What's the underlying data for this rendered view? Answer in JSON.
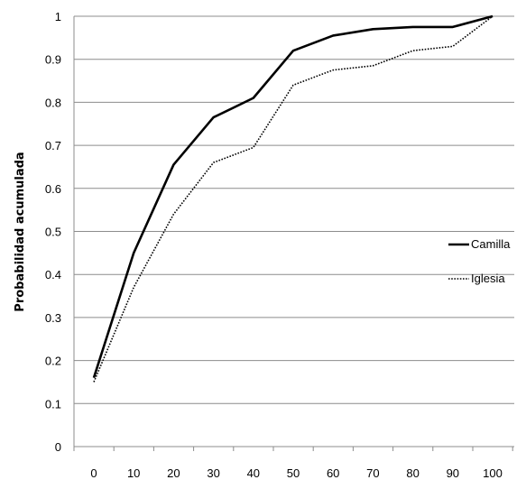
{
  "chart_data": {
    "type": "line",
    "title": "",
    "xlabel": "",
    "ylabel": "Probabilidad  acumulada",
    "x": [
      0,
      10,
      20,
      30,
      40,
      50,
      60,
      70,
      80,
      90,
      100
    ],
    "x_tick_labels": [
      "0",
      "10",
      "20",
      "30",
      "40",
      "50",
      "60",
      "70",
      "80",
      "90",
      "100"
    ],
    "y_tick_labels": [
      "0",
      "0.1",
      "0.2",
      "0.3",
      "0.4",
      "0.5",
      "0.6",
      "0.7",
      "0.8",
      "0.9",
      "1"
    ],
    "ylim": [
      0,
      1
    ],
    "grid": "horizontal",
    "legend_position": "right",
    "series": [
      {
        "name": "Camilla",
        "style": "solid",
        "color": "#000000",
        "values": [
          0.16,
          0.45,
          0.655,
          0.765,
          0.81,
          0.92,
          0.955,
          0.97,
          0.975,
          0.975,
          1.0
        ]
      },
      {
        "name": "Iglesia",
        "style": "dotted",
        "color": "#000000",
        "values": [
          0.15,
          0.37,
          0.54,
          0.66,
          0.695,
          0.84,
          0.875,
          0.885,
          0.92,
          0.93,
          1.0
        ]
      }
    ]
  }
}
